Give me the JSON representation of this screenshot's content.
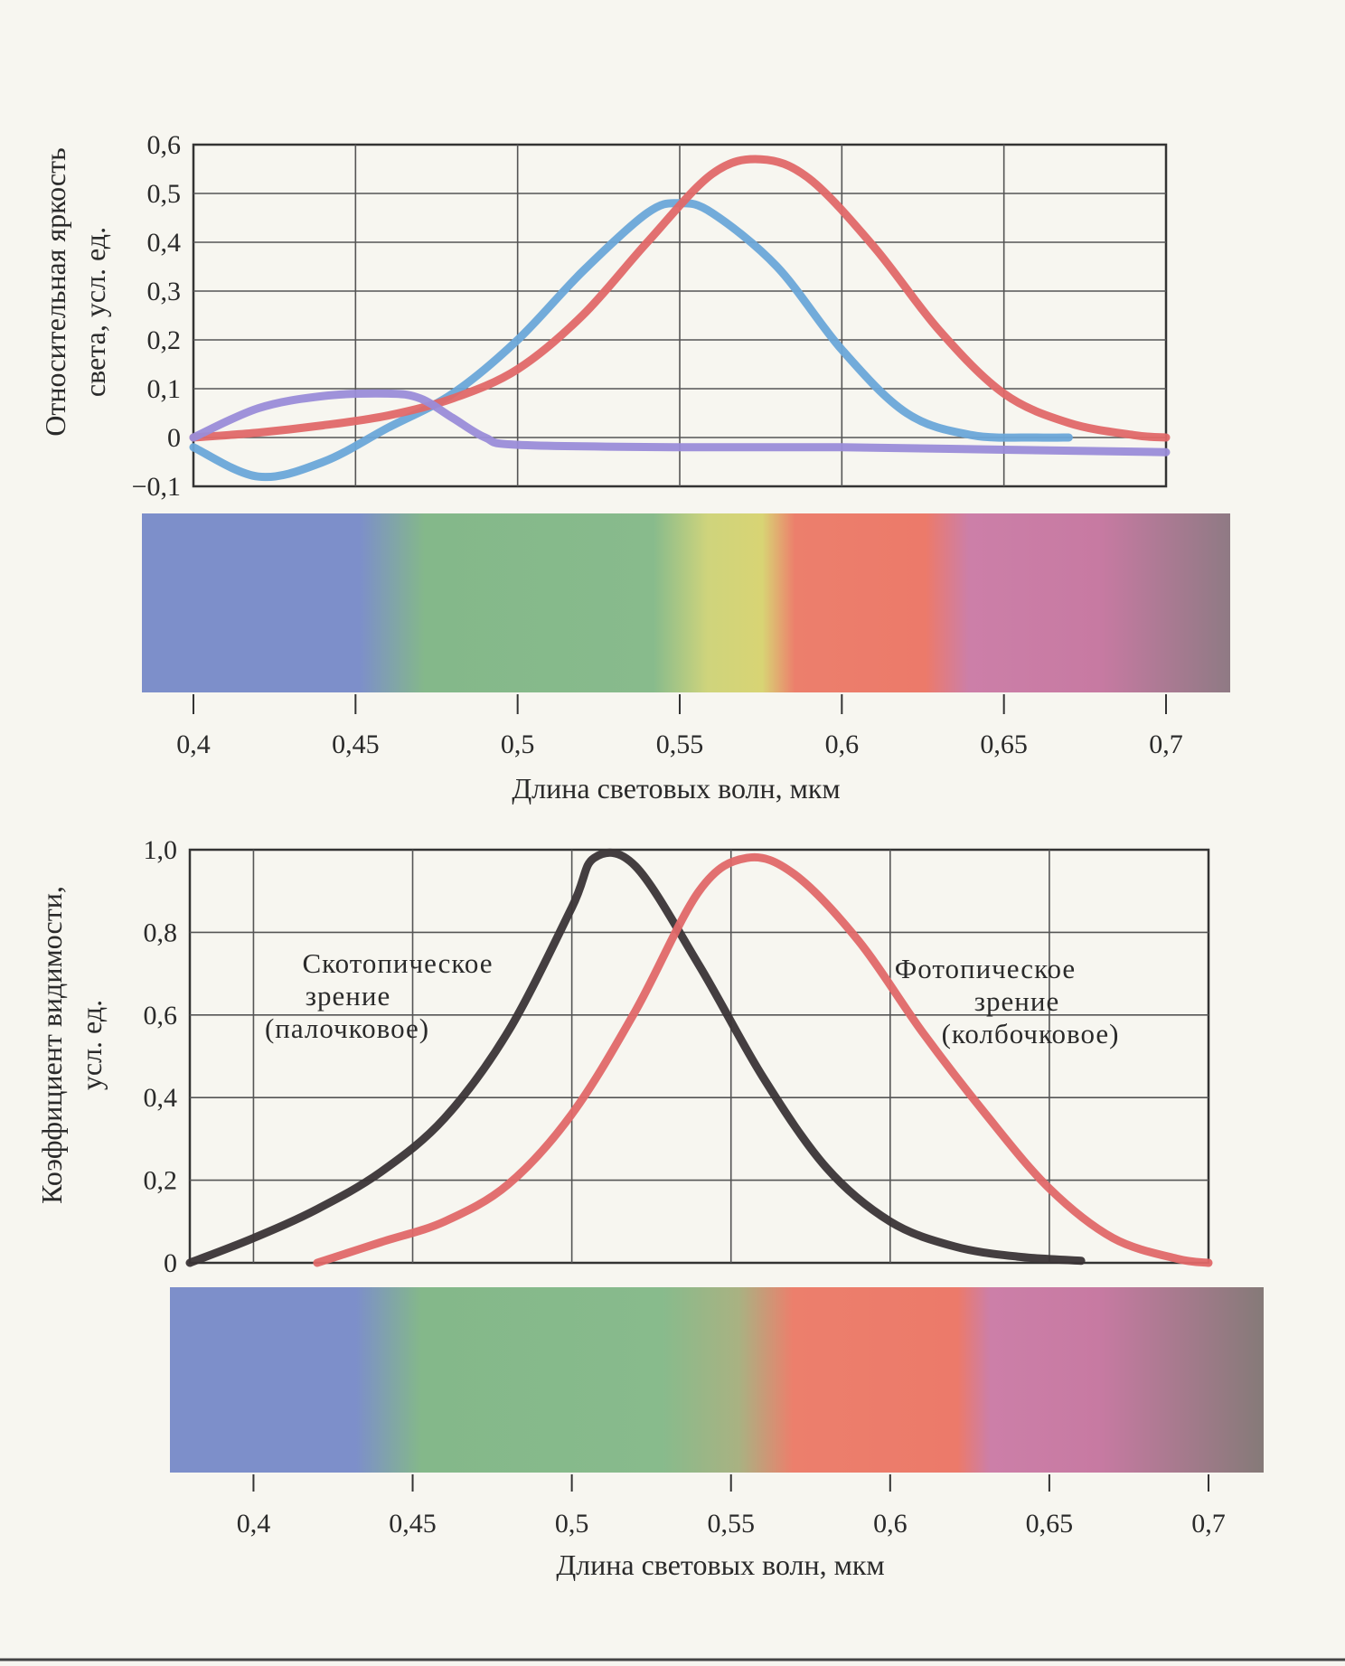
{
  "chart_data": [
    {
      "type": "line",
      "ylabel_lines": [
        "Относительная яркость",
        "света,  усл. ед."
      ],
      "xlabel": "Длина световых волн, мкм",
      "xlim": [
        0.4,
        0.7
      ],
      "ylim": [
        -0.1,
        0.6
      ],
      "x_ticks": [
        "0,4",
        "0,45",
        "0,5",
        "0,55",
        "0,6",
        "0,65",
        "0,7"
      ],
      "y_ticks": [
        "0,6",
        "0,5",
        "0,4",
        "0,3",
        "0,2",
        "0,1",
        "0",
        "−0,1"
      ],
      "grid": true,
      "spectrum_bar": true,
      "series": [
        {
          "color": "#6aa6d8",
          "x": [
            0.4,
            0.42,
            0.44,
            0.46,
            0.48,
            0.5,
            0.52,
            0.54,
            0.55,
            0.56,
            0.58,
            0.6,
            0.62,
            0.64,
            0.66,
            0.67
          ],
          "y": [
            -0.02,
            -0.08,
            -0.05,
            0.02,
            0.09,
            0.2,
            0.34,
            0.46,
            0.48,
            0.46,
            0.35,
            0.18,
            0.05,
            0.005,
            0.0,
            0.0
          ]
        },
        {
          "color": "#e06868",
          "x": [
            0.4,
            0.42,
            0.44,
            0.46,
            0.48,
            0.5,
            0.52,
            0.54,
            0.56,
            0.575,
            0.59,
            0.61,
            0.63,
            0.65,
            0.67,
            0.69,
            0.7
          ],
          "y": [
            0.0,
            0.01,
            0.025,
            0.045,
            0.08,
            0.14,
            0.25,
            0.4,
            0.54,
            0.57,
            0.53,
            0.39,
            0.22,
            0.09,
            0.03,
            0.005,
            0.0
          ]
        },
        {
          "color": "#9a8cd8",
          "x": [
            0.4,
            0.42,
            0.44,
            0.46,
            0.47,
            0.48,
            0.49,
            0.5,
            0.55,
            0.6,
            0.65,
            0.7
          ],
          "y": [
            0.0,
            0.06,
            0.085,
            0.09,
            0.08,
            0.04,
            0.0,
            -0.015,
            -0.02,
            -0.02,
            -0.025,
            -0.03
          ]
        }
      ]
    },
    {
      "type": "line",
      "ylabel_lines": [
        "Коэффициент видимости,",
        "усл. ед."
      ],
      "xlabel": "Длина световых волн, мкм",
      "xlim": [
        0.38,
        0.7
      ],
      "ylim": [
        0,
        1.0
      ],
      "x_ticks": [
        "0,4",
        "0,45",
        "0,5",
        "0,55",
        "0,6",
        "0,65",
        "0,7"
      ],
      "y_ticks": [
        "1,0",
        "0,8",
        "0,6",
        "0,4",
        "0,2",
        "0"
      ],
      "grid": true,
      "spectrum_bar": true,
      "series": [
        {
          "color": "#3a3436",
          "x": [
            0.38,
            0.4,
            0.42,
            0.44,
            0.46,
            0.48,
            0.5,
            0.507,
            0.52,
            0.54,
            0.56,
            0.58,
            0.6,
            0.62,
            0.64,
            0.66
          ],
          "y": [
            0.0,
            0.06,
            0.13,
            0.22,
            0.35,
            0.56,
            0.86,
            0.98,
            0.96,
            0.72,
            0.45,
            0.23,
            0.1,
            0.04,
            0.015,
            0.005
          ]
        },
        {
          "color": "#e06868",
          "x": [
            0.42,
            0.44,
            0.46,
            0.48,
            0.5,
            0.52,
            0.54,
            0.555,
            0.57,
            0.59,
            0.61,
            0.63,
            0.65,
            0.67,
            0.69,
            0.7
          ],
          "y": [
            0.0,
            0.05,
            0.1,
            0.19,
            0.36,
            0.61,
            0.9,
            0.98,
            0.94,
            0.78,
            0.56,
            0.36,
            0.18,
            0.06,
            0.01,
            0.0
          ]
        }
      ],
      "annotations": [
        [
          "Скотопическое",
          "зрение",
          "(палочковое)"
        ],
        [
          "Фотопическое",
          "зрение",
          "(колбочковое)"
        ]
      ]
    }
  ]
}
